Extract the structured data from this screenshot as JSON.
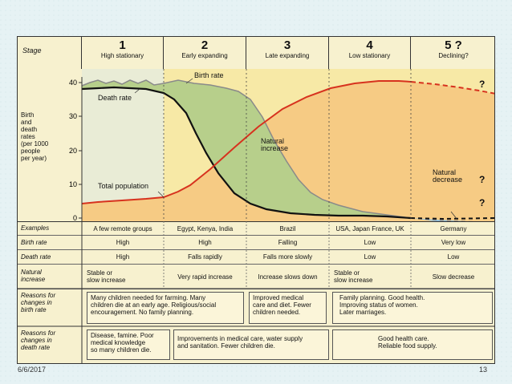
{
  "stage_label": "Stage",
  "stages": [
    {
      "num": "1",
      "name": "High stationary"
    },
    {
      "num": "2",
      "name": "Early expanding"
    },
    {
      "num": "3",
      "name": "Late expanding"
    },
    {
      "num": "4",
      "name": "Low stationary"
    },
    {
      "num": "5 ?",
      "name": "Declining?"
    }
  ],
  "yaxis": {
    "label": "Birth\nand\ndeath\nrates\n(per 1000\npeople\nper year)",
    "ticks": [
      "40",
      "30",
      "20",
      "10",
      "0"
    ]
  },
  "annotations": {
    "birth_rate": "Birth rate",
    "death_rate": "Death rate",
    "natural_increase": "Natural\nincrease",
    "natural_decrease": "Natural\ndecrease",
    "total_population": "Total population",
    "q1": "?",
    "q2": "?",
    "q3": "?"
  },
  "rows": [
    {
      "label": "Examples",
      "cells": [
        "A few remote groups",
        "Egypt, Kenya, India",
        "Brazil",
        "USA, Japan France, UK",
        "Germany"
      ]
    },
    {
      "label": "Birth rate",
      "cells": [
        "High",
        "High",
        "Falling",
        "Low",
        "Very low"
      ]
    },
    {
      "label": "Death rate",
      "cells": [
        "High",
        "Falls rapidly",
        "Falls more slowly",
        "Low",
        "Low"
      ]
    },
    {
      "label": "Natural\nincrease",
      "cells": [
        "Stable or\nslow increase",
        "Very rapid increase",
        "Increase slows down",
        "Stable or\nslow increase",
        "Slow decrease"
      ]
    }
  ],
  "reasons_birth": {
    "label": "Reasons for\nchanges in\nbirth rate",
    "left": "Many children needed for farming. Many\nchildren die at an early age. Religious/social\nencouragement. No family planning.",
    "mid": "Improved medical\ncare and diet. Fewer\nchildren needed.",
    "right": "Family planning. Good health.\nImproving status of women.\nLater marriages."
  },
  "reasons_death": {
    "label": "Reasons for\nchanges in\ndeath rate",
    "left": "Disease, famine. Poor\nmedical knowledge\nso many children die.",
    "mid": "Improvements in medical care, water supply\nand sanitation. Fewer children die.",
    "right": "Good health care.\nReliable food supply."
  },
  "footer": {
    "date": "6/6/2017",
    "page": "13"
  },
  "colors": {
    "header": "#f7f1cf",
    "stage1": "#e9ecd6",
    "chart_bg": "#f7e9a6",
    "population_fill": "#f6cb84",
    "natural_increase": "#b7cf8b",
    "natural_decrease": "#8fc1df",
    "birth_rate": "#8a8a8a",
    "death_rate": "#111111",
    "total_population": "#d7321e"
  }
}
